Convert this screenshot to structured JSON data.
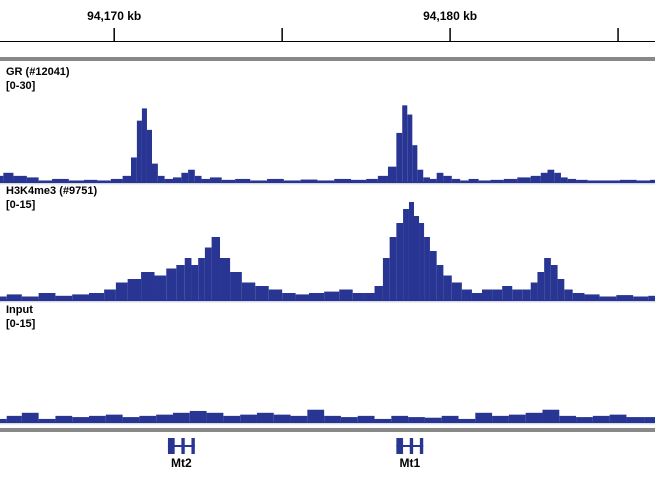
{
  "ruler": {
    "ticks": [
      {
        "value": 94166,
        "label": ""
      },
      {
        "value": 94170,
        "label": "94,170 kb"
      },
      {
        "value": 94175,
        "label": ""
      },
      {
        "value": 94180,
        "label": "94,180 kb"
      },
      {
        "value": 94185,
        "label": ""
      }
    ]
  },
  "colors": {
    "signal": "#283593",
    "text": "#000000",
    "divider": "#888888",
    "gene": "#283593"
  },
  "chart_data": {
    "type": "area",
    "x_range_kb": [
      94166.6,
      94186.1
    ],
    "x_unit": "kb",
    "tracks": [
      {
        "name": "GR (#12041)",
        "range_label": "[0-30]",
        "ylim": [
          0,
          30
        ],
        "x": [
          94166.6,
          94166.8,
          94167.2,
          94167.6,
          94167.9,
          94168.4,
          94168.9,
          94169.3,
          94169.7,
          94170.1,
          94170.4,
          94170.6,
          94170.75,
          94170.9,
          94171.05,
          94171.2,
          94171.4,
          94171.6,
          94171.9,
          94172.1,
          94172.3,
          94172.5,
          94172.7,
          94173.0,
          94173.4,
          94173.8,
          94174.3,
          94174.8,
          94175.3,
          94175.8,
          94176.3,
          94176.8,
          94177.3,
          94177.7,
          94178.0,
          94178.3,
          94178.5,
          94178.65,
          94178.8,
          94178.95,
          94179.1,
          94179.3,
          94179.5,
          94179.7,
          94179.9,
          94180.2,
          94180.4,
          94180.7,
          94181.0,
          94181.4,
          94181.8,
          94182.2,
          94182.6,
          94182.8,
          94183.0,
          94183.2,
          94183.4,
          94183.6,
          94183.9,
          94184.3,
          94184.8,
          94185.3,
          94185.8,
          94186.1
        ],
        "y": [
          2,
          3,
          2,
          1.5,
          0.5,
          1,
          0.5,
          0.7,
          0.5,
          1,
          2,
          8,
          20,
          24,
          17,
          6,
          2,
          1,
          1.5,
          3,
          4,
          2,
          1,
          1.5,
          0.7,
          1,
          0.5,
          1,
          0.5,
          0.8,
          0.5,
          1,
          0.7,
          1,
          2,
          5,
          16,
          25,
          22,
          12,
          4,
          1.5,
          1,
          3,
          2,
          1,
          0.5,
          1,
          0.5,
          0.7,
          1,
          1.5,
          2,
          3,
          4,
          3,
          1.5,
          1,
          0.7,
          0.5,
          0.5,
          0.7,
          0.5,
          0.7
        ]
      },
      {
        "name": "H3K4me3 (#9751)",
        "range_label": "[0-15]",
        "ylim": [
          0,
          15
        ],
        "x": [
          94166.6,
          94167.0,
          94167.5,
          94168.0,
          94168.5,
          94169.0,
          94169.5,
          94169.9,
          94170.2,
          94170.6,
          94171.0,
          94171.4,
          94171.7,
          94172.0,
          94172.2,
          94172.4,
          94172.6,
          94172.8,
          94173.0,
          94173.3,
          94173.6,
          94174.0,
          94174.4,
          94174.8,
          94175.2,
          94175.6,
          94176.0,
          94176.5,
          94176.9,
          94177.3,
          94177.6,
          94177.9,
          94178.1,
          94178.3,
          94178.5,
          94178.7,
          94178.85,
          94179.0,
          94179.15,
          94179.3,
          94179.5,
          94179.7,
          94179.9,
          94180.2,
          94180.5,
          94180.8,
          94181.1,
          94181.4,
          94181.7,
          94182.0,
          94182.3,
          94182.5,
          94182.7,
          94182.9,
          94183.1,
          94183.3,
          94183.5,
          94183.8,
          94184.2,
          94184.7,
          94185.2,
          94185.7,
          94186.1
        ],
        "y": [
          0.5,
          0.8,
          0.5,
          1,
          0.6,
          0.8,
          1,
          1.5,
          2.5,
          3,
          4,
          3.5,
          4.5,
          5,
          6,
          5,
          6,
          7.5,
          9,
          6,
          4,
          2.5,
          2,
          1.5,
          1,
          0.8,
          1,
          1.2,
          1.5,
          1,
          1,
          2,
          6,
          9,
          11,
          13,
          14,
          12,
          11,
          9,
          7,
          5,
          3.5,
          2.5,
          1.5,
          1,
          1.5,
          1.5,
          2,
          1.5,
          1.5,
          2.5,
          4,
          6,
          5,
          3,
          1.5,
          1,
          0.8,
          0.5,
          0.7,
          0.5,
          0.6
        ]
      },
      {
        "name": "Input",
        "range_label": "[0-15]",
        "ylim": [
          0,
          15
        ],
        "x": [
          94166.6,
          94167.0,
          94167.5,
          94168.0,
          94168.5,
          94169.0,
          94169.5,
          94170.0,
          94170.5,
          94171.0,
          94171.5,
          94172.0,
          94172.5,
          94173.0,
          94173.5,
          94174.0,
          94174.5,
          94175.0,
          94175.5,
          94176.0,
          94176.5,
          94177.0,
          94177.5,
          94178.0,
          94178.5,
          94179.0,
          94179.5,
          94180.0,
          94180.5,
          94181.0,
          94181.5,
          94182.0,
          94182.5,
          94183.0,
          94183.5,
          94184.0,
          94184.5,
          94185.0,
          94185.5,
          94186.1
        ],
        "y": [
          0.5,
          1,
          1.5,
          0.5,
          1,
          0.8,
          1,
          1.2,
          0.8,
          1,
          1.2,
          1.5,
          1.8,
          1.5,
          1,
          1.2,
          1.5,
          1.2,
          1,
          2,
          1,
          0.8,
          1,
          0.5,
          1,
          0.8,
          0.7,
          1,
          0.5,
          1.5,
          1,
          1.2,
          1.5,
          2,
          1,
          0.8,
          1,
          1.2,
          0.8,
          0.8
        ]
      }
    ]
  },
  "genes": [
    {
      "label": "Mt2",
      "start": 94171.6,
      "end": 94172.4,
      "exons": [
        [
          94171.6,
          94171.8
        ],
        [
          94172.0,
          94172.1
        ],
        [
          94172.3,
          94172.4
        ]
      ]
    },
    {
      "label": "Mt1",
      "start": 94178.4,
      "end": 94179.2,
      "exons": [
        [
          94178.4,
          94178.6
        ],
        [
          94178.8,
          94178.9
        ],
        [
          94179.1,
          94179.2
        ]
      ]
    }
  ]
}
